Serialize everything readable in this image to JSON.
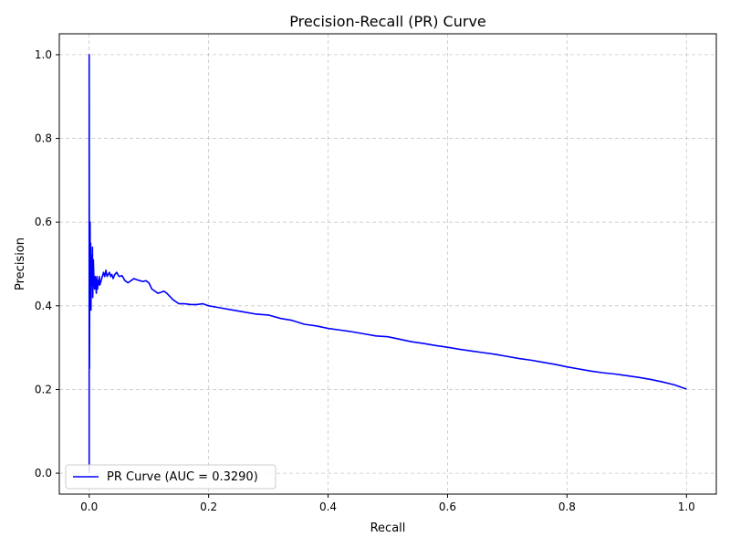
{
  "chart_data": {
    "type": "line",
    "title": "Precision-Recall (PR) Curve",
    "xlabel": "Recall",
    "ylabel": "Precision",
    "xlim": [
      -0.05,
      1.05
    ],
    "ylim": [
      -0.05,
      1.05
    ],
    "xticks": [
      0.0,
      0.2,
      0.4,
      0.6,
      0.8,
      1.0
    ],
    "yticks": [
      0.0,
      0.2,
      0.4,
      0.6,
      0.8,
      1.0
    ],
    "xtick_labels": [
      "0.0",
      "0.2",
      "0.4",
      "0.6",
      "0.8",
      "1.0"
    ],
    "ytick_labels": [
      "0.0",
      "0.2",
      "0.4",
      "0.6",
      "0.8",
      "1.0"
    ],
    "grid": true,
    "legend_position": "lower-left",
    "series": [
      {
        "name": "PR Curve (AUC = 0.3290)",
        "color": "#0000ff",
        "x": [
          0.0,
          0.0,
          0.0005,
          0.001,
          0.0015,
          0.002,
          0.0025,
          0.003,
          0.0035,
          0.004,
          0.0045,
          0.005,
          0.0055,
          0.006,
          0.007,
          0.008,
          0.009,
          0.01,
          0.011,
          0.012,
          0.013,
          0.014,
          0.015,
          0.016,
          0.017,
          0.018,
          0.02,
          0.022,
          0.024,
          0.026,
          0.028,
          0.03,
          0.032,
          0.034,
          0.036,
          0.038,
          0.04,
          0.043,
          0.046,
          0.05,
          0.055,
          0.06,
          0.065,
          0.07,
          0.075,
          0.08,
          0.085,
          0.09,
          0.095,
          0.1,
          0.105,
          0.11,
          0.115,
          0.12,
          0.125,
          0.13,
          0.14,
          0.15,
          0.16,
          0.17,
          0.18,
          0.19,
          0.2,
          0.22,
          0.24,
          0.26,
          0.28,
          0.3,
          0.32,
          0.34,
          0.36,
          0.38,
          0.4,
          0.42,
          0.44,
          0.46,
          0.48,
          0.5,
          0.52,
          0.54,
          0.56,
          0.58,
          0.6,
          0.62,
          0.64,
          0.66,
          0.68,
          0.7,
          0.72,
          0.74,
          0.76,
          0.78,
          0.8,
          0.82,
          0.84,
          0.86,
          0.88,
          0.9,
          0.92,
          0.94,
          0.96,
          0.98,
          1.0
        ],
        "y": [
          0.0,
          1.0,
          0.25,
          0.5,
          0.6,
          0.42,
          0.55,
          0.39,
          0.5,
          0.45,
          0.52,
          0.47,
          0.54,
          0.42,
          0.51,
          0.46,
          0.44,
          0.47,
          0.45,
          0.43,
          0.47,
          0.44,
          0.46,
          0.45,
          0.47,
          0.45,
          0.46,
          0.47,
          0.48,
          0.47,
          0.485,
          0.47,
          0.475,
          0.48,
          0.47,
          0.475,
          0.465,
          0.475,
          0.48,
          0.47,
          0.472,
          0.46,
          0.455,
          0.46,
          0.465,
          0.462,
          0.46,
          0.458,
          0.46,
          0.455,
          0.44,
          0.435,
          0.43,
          0.432,
          0.435,
          0.43,
          0.415,
          0.405,
          0.405,
          0.403,
          0.403,
          0.405,
          0.4,
          0.395,
          0.39,
          0.385,
          0.38,
          0.378,
          0.37,
          0.365,
          0.356,
          0.352,
          0.346,
          0.342,
          0.338,
          0.333,
          0.328,
          0.326,
          0.32,
          0.314,
          0.31,
          0.305,
          0.301,
          0.296,
          0.292,
          0.288,
          0.284,
          0.279,
          0.274,
          0.27,
          0.265,
          0.26,
          0.254,
          0.249,
          0.244,
          0.24,
          0.237,
          0.233,
          0.229,
          0.224,
          0.218,
          0.211,
          0.201
        ]
      }
    ]
  }
}
